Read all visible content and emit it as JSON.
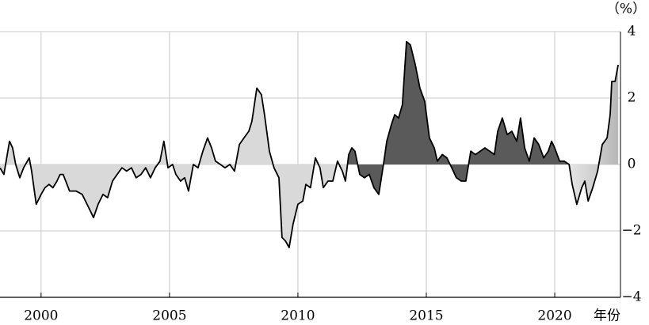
{
  "chart_data": {
    "type": "area",
    "y_unit_label": "（%）",
    "x_axis_label": "年份",
    "xlim": [
      1998.4,
      2022.56
    ],
    "xticks": [
      2000,
      2005,
      2010,
      2015,
      2020
    ],
    "ylim": [
      -4,
      4
    ],
    "yticks": [
      4,
      2,
      0,
      {
        "value": -2,
        "label": "−2"
      },
      {
        "value": -4,
        "label": "−4"
      }
    ],
    "grid": true,
    "color": "#d9d9d9",
    "line_color": "#000000",
    "highlight": {
      "xrange": [
        2011.9,
        2020.56
      ],
      "color": "#5a5a5a"
    },
    "end_gradient": {
      "xrange": [
        2020.56,
        2022.56
      ],
      "color": "#b5b5b5"
    },
    "x": [
      1998.4,
      1998.55,
      1998.77,
      1998.89,
      1999.01,
      1999.17,
      1999.32,
      1999.54,
      1999.63,
      1999.81,
      2000.0,
      2000.15,
      2000.31,
      2000.46,
      2000.62,
      2000.74,
      2000.86,
      2001.11,
      2001.36,
      2001.6,
      2001.79,
      2002.04,
      2002.22,
      2002.41,
      2002.59,
      2002.78,
      2002.96,
      2003.15,
      2003.33,
      2003.52,
      2003.7,
      2003.89,
      2004.07,
      2004.26,
      2004.44,
      2004.63,
      2004.78,
      2004.94,
      2005.12,
      2005.25,
      2005.43,
      2005.59,
      2005.74,
      2005.93,
      2006.11,
      2006.3,
      2006.48,
      2006.64,
      2006.79,
      2006.98,
      2007.16,
      2007.35,
      2007.53,
      2007.72,
      2007.9,
      2008.09,
      2008.21,
      2008.4,
      2008.58,
      2008.7,
      2008.89,
      2009.07,
      2009.26,
      2009.38,
      2009.51,
      2009.66,
      2009.81,
      2010.0,
      2010.19,
      2010.31,
      2010.49,
      2010.68,
      2010.86,
      2010.99,
      2011.17,
      2011.36,
      2011.54,
      2011.73,
      2011.85,
      2011.98,
      2012.1,
      2012.22,
      2012.41,
      2012.59,
      2012.78,
      2012.96,
      2013.15,
      2013.33,
      2013.46,
      2013.64,
      2013.77,
      2013.92,
      2014.07,
      2014.23,
      2014.38,
      2014.57,
      2014.75,
      2014.94,
      2015.12,
      2015.31,
      2015.43,
      2015.62,
      2015.8,
      2015.99,
      2016.17,
      2016.36,
      2016.54,
      2016.73,
      2016.91,
      2017.1,
      2017.28,
      2017.47,
      2017.65,
      2017.78,
      2017.96,
      2018.15,
      2018.33,
      2018.52,
      2018.67,
      2018.83,
      2019.01,
      2019.2,
      2019.38,
      2019.57,
      2019.75,
      2019.88,
      2020.0,
      2020.19,
      2020.37,
      2020.56,
      2020.68,
      2020.86,
      2021.05,
      2021.17,
      2021.3,
      2021.48,
      2021.67,
      2021.85,
      2022.04,
      2022.16,
      2022.22,
      2022.35,
      2022.47
    ],
    "values": [
      -0.1,
      -0.3,
      0.7,
      0.5,
      0,
      -0.4,
      -0.1,
      0.2,
      -0.2,
      -1.2,
      -0.9,
      -0.7,
      -0.6,
      -0.7,
      -0.5,
      -0.3,
      -0.3,
      -0.8,
      -0.8,
      -0.9,
      -1.2,
      -1.6,
      -1.2,
      -0.9,
      -1.0,
      -0.5,
      -0.3,
      -0.1,
      -0.2,
      -0.1,
      -0.4,
      -0.3,
      -0.1,
      -0.4,
      -0.1,
      0.1,
      0.7,
      -0.1,
      0,
      -0.3,
      -0.5,
      -0.4,
      -0.8,
      0,
      -0.1,
      0.4,
      0.8,
      0.5,
      0.1,
      0,
      -0.1,
      0,
      -0.2,
      0.6,
      0.8,
      1.0,
      1.3,
      2.3,
      2.1,
      1.5,
      0.4,
      -0.1,
      -0.4,
      -2.2,
      -2.3,
      -2.5,
      -1.8,
      -1.2,
      -1.1,
      -0.6,
      -0.7,
      0.2,
      -0.1,
      -0.7,
      -0.5,
      -0.5,
      0.1,
      -0.2,
      -0.5,
      0.3,
      0.5,
      0.4,
      -0.3,
      -0.4,
      -0.3,
      -0.7,
      -0.9,
      0,
      0.7,
      1.2,
      1.5,
      1.4,
      1.8,
      3.7,
      3.6,
      3.0,
      2.3,
      1.9,
      0.8,
      0.5,
      0.1,
      0.3,
      0.2,
      -0.1,
      -0.4,
      -0.5,
      -0.5,
      0.4,
      0.3,
      0.4,
      0.5,
      0.4,
      0.3,
      1.0,
      1.4,
      0.9,
      1.0,
      0.7,
      1.4,
      0.5,
      0.1,
      0.8,
      0.6,
      0.2,
      0.4,
      0.7,
      0.5,
      0.1,
      0.1,
      0,
      -0.6,
      -1.2,
      -0.7,
      -0.5,
      -1.1,
      -0.7,
      -0.2,
      0.6,
      0.8,
      1.5,
      2.5,
      2.5,
      3.0
    ]
  }
}
